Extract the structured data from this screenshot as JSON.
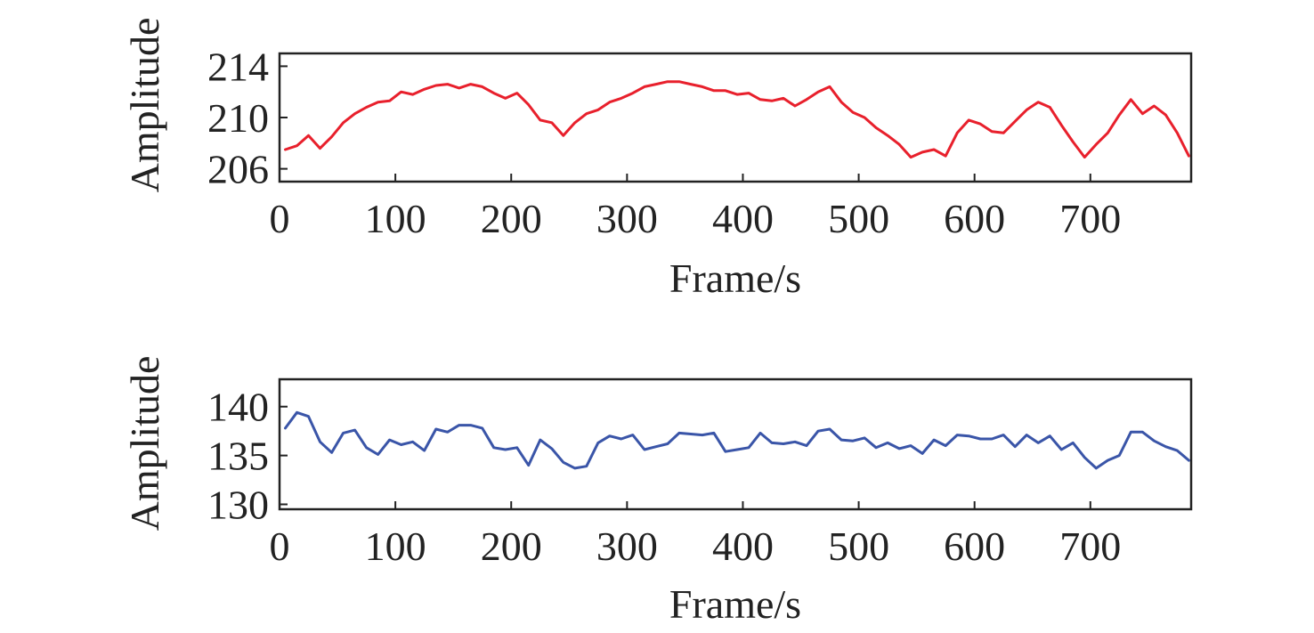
{
  "chart_data": [
    {
      "type": "line",
      "xlabel": "Frame/s",
      "ylabel": "Amplitude",
      "xlim": [
        0,
        787
      ],
      "ylim": [
        205,
        215
      ],
      "xticks": [
        0,
        100,
        200,
        300,
        400,
        500,
        600,
        700
      ],
      "yticks": [
        206,
        210,
        214
      ],
      "grid": false,
      "series": [
        {
          "color": "#e8202c",
          "x": [
            5,
            15,
            25,
            35,
            45,
            55,
            65,
            75,
            85,
            95,
            105,
            115,
            125,
            135,
            145,
            155,
            165,
            175,
            185,
            195,
            205,
            215,
            225,
            235,
            245,
            255,
            265,
            275,
            285,
            295,
            305,
            315,
            325,
            335,
            345,
            355,
            365,
            375,
            385,
            395,
            405,
            415,
            425,
            435,
            445,
            455,
            465,
            475,
            485,
            495,
            505,
            515,
            525,
            535,
            545,
            555,
            565,
            575,
            585,
            595,
            605,
            615,
            625,
            635,
            645,
            655,
            665,
            675,
            685,
            695,
            705,
            715,
            725,
            735,
            745,
            755,
            765,
            775,
            785
          ],
          "values": [
            207.5,
            207.8,
            208.6,
            207.6,
            208.5,
            209.6,
            210.3,
            210.8,
            211.2,
            211.3,
            212.0,
            211.8,
            212.2,
            212.5,
            212.6,
            212.3,
            212.6,
            212.4,
            211.9,
            211.5,
            211.9,
            211.0,
            209.8,
            209.6,
            208.6,
            209.6,
            210.3,
            210.6,
            211.2,
            211.5,
            211.9,
            212.4,
            212.6,
            212.8,
            212.8,
            212.6,
            212.4,
            212.1,
            212.1,
            211.8,
            211.9,
            211.4,
            211.3,
            211.5,
            210.9,
            211.4,
            212.0,
            212.4,
            211.2,
            210.4,
            210.0,
            209.2,
            208.6,
            207.9,
            206.9,
            207.3,
            207.5,
            207.0,
            208.8,
            209.8,
            209.5,
            208.9,
            208.8,
            209.7,
            210.6,
            211.2,
            210.8,
            209.4,
            208.1,
            206.9,
            207.9,
            208.8,
            210.2,
            211.4,
            210.3,
            210.9,
            210.2,
            208.8,
            207.0
          ]
        }
      ]
    },
    {
      "type": "line",
      "xlabel": "Frame/s",
      "ylabel": "Amplitude",
      "xlim": [
        0,
        787
      ],
      "ylim": [
        129.5,
        142.8
      ],
      "xticks": [
        0,
        100,
        200,
        300,
        400,
        500,
        600,
        700
      ],
      "yticks": [
        130,
        135,
        140
      ],
      "grid": false,
      "series": [
        {
          "color": "#3a55a8",
          "x": [
            5,
            15,
            25,
            35,
            45,
            55,
            65,
            75,
            85,
            95,
            105,
            115,
            125,
            135,
            145,
            155,
            165,
            175,
            185,
            195,
            205,
            215,
            225,
            235,
            245,
            255,
            265,
            275,
            285,
            295,
            305,
            315,
            325,
            335,
            345,
            355,
            365,
            375,
            385,
            395,
            405,
            415,
            425,
            435,
            445,
            455,
            465,
            475,
            485,
            495,
            505,
            515,
            525,
            535,
            545,
            555,
            565,
            575,
            585,
            595,
            605,
            615,
            625,
            635,
            645,
            655,
            665,
            675,
            685,
            695,
            705,
            715,
            725,
            735,
            745,
            755,
            765,
            775,
            785
          ],
          "values": [
            137.8,
            139.4,
            139.0,
            136.4,
            135.3,
            137.3,
            137.6,
            135.8,
            135.1,
            136.6,
            136.1,
            136.4,
            135.5,
            137.7,
            137.4,
            138.1,
            138.1,
            137.8,
            135.8,
            135.6,
            135.8,
            134.0,
            136.6,
            135.7,
            134.3,
            133.7,
            133.9,
            136.3,
            137.0,
            136.7,
            137.1,
            135.6,
            135.9,
            136.2,
            137.3,
            137.2,
            137.1,
            137.3,
            135.4,
            135.6,
            135.8,
            137.3,
            136.3,
            136.2,
            136.4,
            136.0,
            137.5,
            137.7,
            136.6,
            136.5,
            136.8,
            135.8,
            136.3,
            135.7,
            136.0,
            135.2,
            136.6,
            136.0,
            137.1,
            137.0,
            136.7,
            136.7,
            137.1,
            135.9,
            137.1,
            136.3,
            137.0,
            135.6,
            136.3,
            134.8,
            133.7,
            134.5,
            135.0,
            137.4,
            137.4,
            136.5,
            135.9,
            135.5,
            134.5
          ]
        }
      ]
    }
  ]
}
